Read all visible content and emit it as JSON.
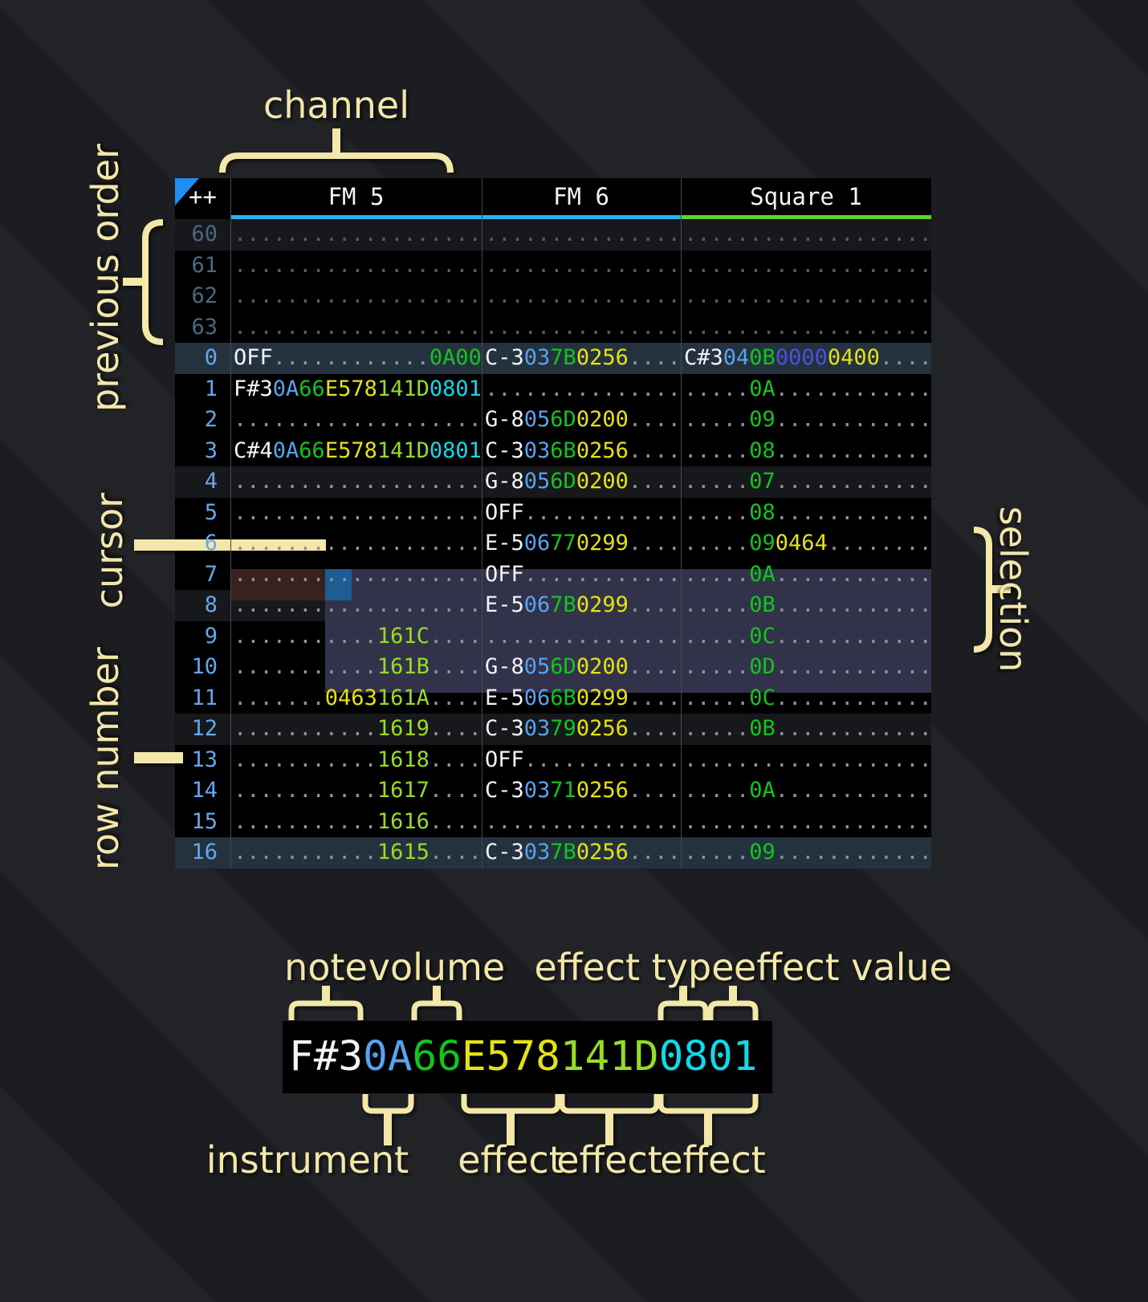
{
  "annotations": {
    "channel": "channel",
    "previous_order": "previous order",
    "cursor": "cursor",
    "row_number": "row number",
    "selection": "selection",
    "note": "note",
    "volume": "volume",
    "effect_type": "effect type",
    "effect_value": "effect value",
    "instrument": "instrument",
    "effect1": "effect",
    "effect2": "effect",
    "effect3": "effect"
  },
  "tracker": {
    "corner": "++",
    "channels": [
      {
        "name": "FM 5",
        "underline": "#29b2f2"
      },
      {
        "name": "FM 6",
        "underline": "#29b2f2"
      },
      {
        "name": "Square 1",
        "underline": "#5fd32e"
      }
    ],
    "colors": {
      "note": "#f2f4f6",
      "ins": "#57a3f0",
      "vol": "#12c41e",
      "fx_yellow": "#e6e112",
      "fx_lime": "#97dc22",
      "fx_cyan": "#12d8e8",
      "fx_indigo": "#4b52de",
      "fx_green": "#12c41e",
      "dot": "#8e9298",
      "dot_prev": "#585c62",
      "rownum": "#64a8ec",
      "rownum_prev": "#4a6880",
      "hl1": "#17181b",
      "hl2": "#243240",
      "selection": "#32334a",
      "cursor": "#1d5c94",
      "cursor_row": "#38211f",
      "divider": "#46494e",
      "underline_fm": "#29b2f2",
      "underline_sq": "#5fd32e",
      "annotation": "#f3e7a9",
      "triangle": "#1e8ef2",
      "header_text": "#f2f4f6",
      "cell_bg": "#000000"
    },
    "rows": [
      {
        "n": "60",
        "prev": true,
        "hl": "hl1",
        "cells": [
          [
            [
              "...................",
              "d"
            ]
          ],
          [
            [
              "...............",
              "d"
            ]
          ],
          [
            [
              "...................",
              "d"
            ]
          ]
        ]
      },
      {
        "n": "61",
        "prev": true,
        "hl": "",
        "cells": [
          [
            [
              "...................",
              "d"
            ]
          ],
          [
            [
              "...............",
              "d"
            ]
          ],
          [
            [
              "...................",
              "d"
            ]
          ]
        ]
      },
      {
        "n": "62",
        "prev": true,
        "hl": "",
        "cells": [
          [
            [
              "...................",
              "d"
            ]
          ],
          [
            [
              "...............",
              "d"
            ]
          ],
          [
            [
              "...................",
              "d"
            ]
          ]
        ]
      },
      {
        "n": "63",
        "prev": true,
        "hl": "",
        "cells": [
          [
            [
              "...................",
              "d"
            ]
          ],
          [
            [
              "...............",
              "d"
            ]
          ],
          [
            [
              "...................",
              "d"
            ]
          ]
        ]
      },
      {
        "n": "0",
        "prev": false,
        "hl": "hl2",
        "cells": [
          [
            [
              "OFF",
              "n"
            ],
            [
              "............",
              "d"
            ],
            [
              "0A00",
              "g"
            ]
          ],
          [
            [
              "C-3",
              "n"
            ],
            [
              "03",
              "i"
            ],
            [
              "7B",
              "v"
            ],
            [
              "0256",
              "y"
            ],
            [
              "....",
              "d"
            ]
          ],
          [
            [
              "C#3",
              "n"
            ],
            [
              "04",
              "i"
            ],
            [
              "0B",
              "v"
            ],
            [
              "0000",
              "u"
            ],
            [
              "0400",
              "y"
            ],
            [
              "....",
              "d"
            ]
          ]
        ]
      },
      {
        "n": "1",
        "prev": false,
        "hl": "",
        "cells": [
          [
            [
              "F#3",
              "n"
            ],
            [
              "0A",
              "i"
            ],
            [
              "66",
              "v"
            ],
            [
              "E578",
              "y"
            ],
            [
              "141D",
              "l"
            ],
            [
              "0801",
              "c"
            ]
          ],
          [
            [
              "...............",
              "d"
            ]
          ],
          [
            [
              ".....",
              "d"
            ],
            [
              "0A",
              "v"
            ],
            [
              "............",
              "d"
            ]
          ]
        ]
      },
      {
        "n": "2",
        "prev": false,
        "hl": "",
        "cells": [
          [
            [
              "...................",
              "d"
            ]
          ],
          [
            [
              "G-8",
              "n"
            ],
            [
              "05",
              "i"
            ],
            [
              "6D",
              "v"
            ],
            [
              "0200",
              "y"
            ],
            [
              "....",
              "d"
            ]
          ],
          [
            [
              ".....",
              "d"
            ],
            [
              "09",
              "v"
            ],
            [
              "............",
              "d"
            ]
          ]
        ]
      },
      {
        "n": "3",
        "prev": false,
        "hl": "",
        "cells": [
          [
            [
              "C#4",
              "n"
            ],
            [
              "0A",
              "i"
            ],
            [
              "66",
              "v"
            ],
            [
              "E578",
              "y"
            ],
            [
              "141D",
              "l"
            ],
            [
              "0801",
              "c"
            ]
          ],
          [
            [
              "C-3",
              "n"
            ],
            [
              "03",
              "i"
            ],
            [
              "6B",
              "v"
            ],
            [
              "0256",
              "y"
            ],
            [
              "....",
              "d"
            ]
          ],
          [
            [
              ".....",
              "d"
            ],
            [
              "08",
              "v"
            ],
            [
              "............",
              "d"
            ]
          ]
        ]
      },
      {
        "n": "4",
        "prev": false,
        "hl": "hl1",
        "cells": [
          [
            [
              "...................",
              "d"
            ]
          ],
          [
            [
              "G-8",
              "n"
            ],
            [
              "05",
              "i"
            ],
            [
              "6D",
              "v"
            ],
            [
              "0200",
              "y"
            ],
            [
              "....",
              "d"
            ]
          ],
          [
            [
              ".....",
              "d"
            ],
            [
              "07",
              "v"
            ],
            [
              "............",
              "d"
            ]
          ]
        ]
      },
      {
        "n": "5",
        "prev": false,
        "hl": "",
        "cells": [
          [
            [
              "...................",
              "d"
            ]
          ],
          [
            [
              "OFF",
              "n"
            ],
            [
              "............",
              "d"
            ]
          ],
          [
            [
              ".....",
              "d"
            ],
            [
              "08",
              "v"
            ],
            [
              "............",
              "d"
            ]
          ]
        ]
      },
      {
        "n": "6",
        "prev": false,
        "hl": "",
        "cursor": true,
        "cells": [
          [
            [
              "...................",
              "d"
            ]
          ],
          [
            [
              "E-5",
              "n"
            ],
            [
              "06",
              "i"
            ],
            [
              "77",
              "v"
            ],
            [
              "0299",
              "y"
            ],
            [
              "....",
              "d"
            ]
          ],
          [
            [
              ".....",
              "d"
            ],
            [
              "09",
              "v"
            ],
            [
              "0464",
              "y"
            ],
            [
              "........",
              "d"
            ]
          ]
        ]
      },
      {
        "n": "7",
        "prev": false,
        "hl": "",
        "cells": [
          [
            [
              "...................",
              "d"
            ]
          ],
          [
            [
              "OFF",
              "n"
            ],
            [
              "............",
              "d"
            ]
          ],
          [
            [
              ".....",
              "d"
            ],
            [
              "0A",
              "v"
            ],
            [
              "............",
              "d"
            ]
          ]
        ]
      },
      {
        "n": "8",
        "prev": false,
        "hl": "hl1",
        "cells": [
          [
            [
              "...................",
              "d"
            ]
          ],
          [
            [
              "E-5",
              "n"
            ],
            [
              "06",
              "i"
            ],
            [
              "7B",
              "v"
            ],
            [
              "0299",
              "y"
            ],
            [
              "....",
              "d"
            ]
          ],
          [
            [
              ".....",
              "d"
            ],
            [
              "0B",
              "v"
            ],
            [
              "............",
              "d"
            ]
          ]
        ]
      },
      {
        "n": "9",
        "prev": false,
        "hl": "",
        "cells": [
          [
            [
              "...........",
              "d"
            ],
            [
              "161C",
              "l"
            ],
            [
              "....",
              "d"
            ]
          ],
          [
            [
              "...............",
              "d"
            ]
          ],
          [
            [
              ".....",
              "d"
            ],
            [
              "0C",
              "v"
            ],
            [
              "............",
              "d"
            ]
          ]
        ]
      },
      {
        "n": "10",
        "prev": false,
        "hl": "",
        "cells": [
          [
            [
              "...........",
              "d"
            ],
            [
              "161B",
              "l"
            ],
            [
              "....",
              "d"
            ]
          ],
          [
            [
              "G-8",
              "n"
            ],
            [
              "05",
              "i"
            ],
            [
              "6D",
              "v"
            ],
            [
              "0200",
              "y"
            ],
            [
              "....",
              "d"
            ]
          ],
          [
            [
              ".....",
              "d"
            ],
            [
              "0D",
              "v"
            ],
            [
              "............",
              "d"
            ]
          ]
        ]
      },
      {
        "n": "11",
        "prev": false,
        "hl": "",
        "cells": [
          [
            [
              ".......",
              "d"
            ],
            [
              "0463",
              "y"
            ],
            [
              "161A",
              "l"
            ],
            [
              "....",
              "d"
            ]
          ],
          [
            [
              "E-5",
              "n"
            ],
            [
              "06",
              "i"
            ],
            [
              "6B",
              "v"
            ],
            [
              "0299",
              "y"
            ],
            [
              "....",
              "d"
            ]
          ],
          [
            [
              ".....",
              "d"
            ],
            [
              "0C",
              "v"
            ],
            [
              "............",
              "d"
            ]
          ]
        ]
      },
      {
        "n": "12",
        "prev": false,
        "hl": "hl1",
        "cells": [
          [
            [
              "...........",
              "d"
            ],
            [
              "1619",
              "l"
            ],
            [
              "....",
              "d"
            ]
          ],
          [
            [
              "C-3",
              "n"
            ],
            [
              "03",
              "i"
            ],
            [
              "79",
              "v"
            ],
            [
              "0256",
              "y"
            ],
            [
              "....",
              "d"
            ]
          ],
          [
            [
              ".....",
              "d"
            ],
            [
              "0B",
              "v"
            ],
            [
              "............",
              "d"
            ]
          ]
        ]
      },
      {
        "n": "13",
        "prev": false,
        "hl": "",
        "cells": [
          [
            [
              "...........",
              "d"
            ],
            [
              "1618",
              "l"
            ],
            [
              "....",
              "d"
            ]
          ],
          [
            [
              "OFF",
              "n"
            ],
            [
              "............",
              "d"
            ]
          ],
          [
            [
              "...................",
              "d"
            ]
          ]
        ]
      },
      {
        "n": "14",
        "prev": false,
        "hl": "",
        "cells": [
          [
            [
              "...........",
              "d"
            ],
            [
              "1617",
              "l"
            ],
            [
              "....",
              "d"
            ]
          ],
          [
            [
              "C-3",
              "n"
            ],
            [
              "03",
              "i"
            ],
            [
              "71",
              "v"
            ],
            [
              "0256",
              "y"
            ],
            [
              "....",
              "d"
            ]
          ],
          [
            [
              ".....",
              "d"
            ],
            [
              "0A",
              "v"
            ],
            [
              "............",
              "d"
            ]
          ]
        ]
      },
      {
        "n": "15",
        "prev": false,
        "hl": "",
        "cells": [
          [
            [
              "...........",
              "d"
            ],
            [
              "1616",
              "l"
            ],
            [
              "....",
              "d"
            ]
          ],
          [
            [
              "...............",
              "d"
            ]
          ],
          [
            [
              "...................",
              "d"
            ]
          ]
        ]
      },
      {
        "n": "16",
        "prev": false,
        "hl": "hl2",
        "cells": [
          [
            [
              "...........",
              "d"
            ],
            [
              "1615",
              "l"
            ],
            [
              "....",
              "d"
            ]
          ],
          [
            [
              "C-3",
              "n"
            ],
            [
              "03",
              "i"
            ],
            [
              "7B",
              "v"
            ],
            [
              "0256",
              "y"
            ],
            [
              "....",
              "d"
            ]
          ],
          [
            [
              ".....",
              "d"
            ],
            [
              "09",
              "v"
            ],
            [
              "............",
              "d"
            ]
          ]
        ]
      }
    ]
  },
  "zoom_cell": {
    "segments": [
      [
        "F#3",
        "n"
      ],
      [
        "0A",
        "i"
      ],
      [
        "66",
        "v"
      ],
      [
        "E578",
        "y"
      ],
      [
        "141D",
        "l"
      ],
      [
        "0801",
        "c"
      ]
    ]
  }
}
